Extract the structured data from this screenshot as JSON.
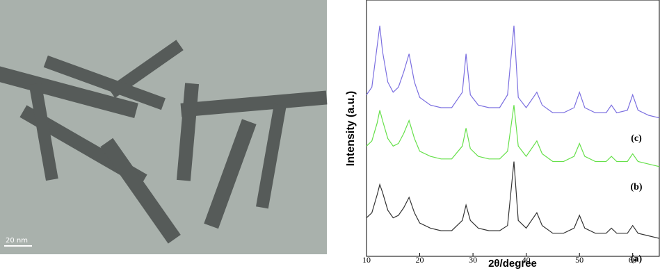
{
  "image": {
    "scale_bar": "20 nm"
  },
  "chart_data": {
    "type": "line",
    "x_label": "2θ/degree",
    "y_label": "Intensity (a.u.)",
    "x": [
      10,
      11,
      12,
      12.5,
      13,
      14,
      15,
      16,
      17,
      18,
      19,
      20,
      22,
      24,
      26,
      28,
      28.7,
      29.5,
      31,
      33,
      35,
      36.5,
      37.7,
      38.5,
      40,
      42,
      43,
      45,
      47,
      49,
      50,
      51,
      53,
      55,
      56,
      57,
      59,
      60,
      61,
      63,
      65
    ],
    "series": [
      {
        "name": "(a)",
        "color": "#333333",
        "values": [
          15,
          17,
          24,
          28,
          25,
          18,
          15,
          16,
          19,
          23,
          17,
          13,
          11,
          10,
          10,
          14,
          20,
          14,
          11,
          10,
          10,
          12,
          37,
          14,
          11,
          17,
          12,
          9,
          9,
          11,
          16,
          11,
          9,
          9,
          11,
          9,
          9,
          12,
          9,
          8,
          7
        ]
      },
      {
        "name": "(b)",
        "color": "#66e04a",
        "values": [
          43,
          45,
          52,
          57,
          53,
          46,
          43,
          44,
          48,
          53,
          46,
          41,
          39,
          38,
          38,
          43,
          50,
          42,
          39,
          38,
          38,
          41,
          59,
          43,
          39,
          45,
          40,
          37,
          37,
          39,
          44,
          39,
          37,
          37,
          39,
          37,
          37,
          40,
          37,
          36,
          35
        ]
      },
      {
        "name": "(c)",
        "color": "#7b6fe0",
        "values": [
          63,
          66,
          82,
          90,
          80,
          68,
          64,
          66,
          72,
          79,
          68,
          62,
          59,
          58,
          58,
          64,
          79,
          63,
          59,
          58,
          58,
          63,
          90,
          62,
          58,
          64,
          59,
          56,
          56,
          58,
          64,
          58,
          56,
          56,
          59,
          56,
          57,
          63,
          57,
          55,
          54
        ]
      }
    ],
    "xlim": [
      10,
      65
    ],
    "ylim": [
      0,
      100
    ],
    "xticks": [
      10,
      20,
      30,
      40,
      50,
      60
    ]
  }
}
